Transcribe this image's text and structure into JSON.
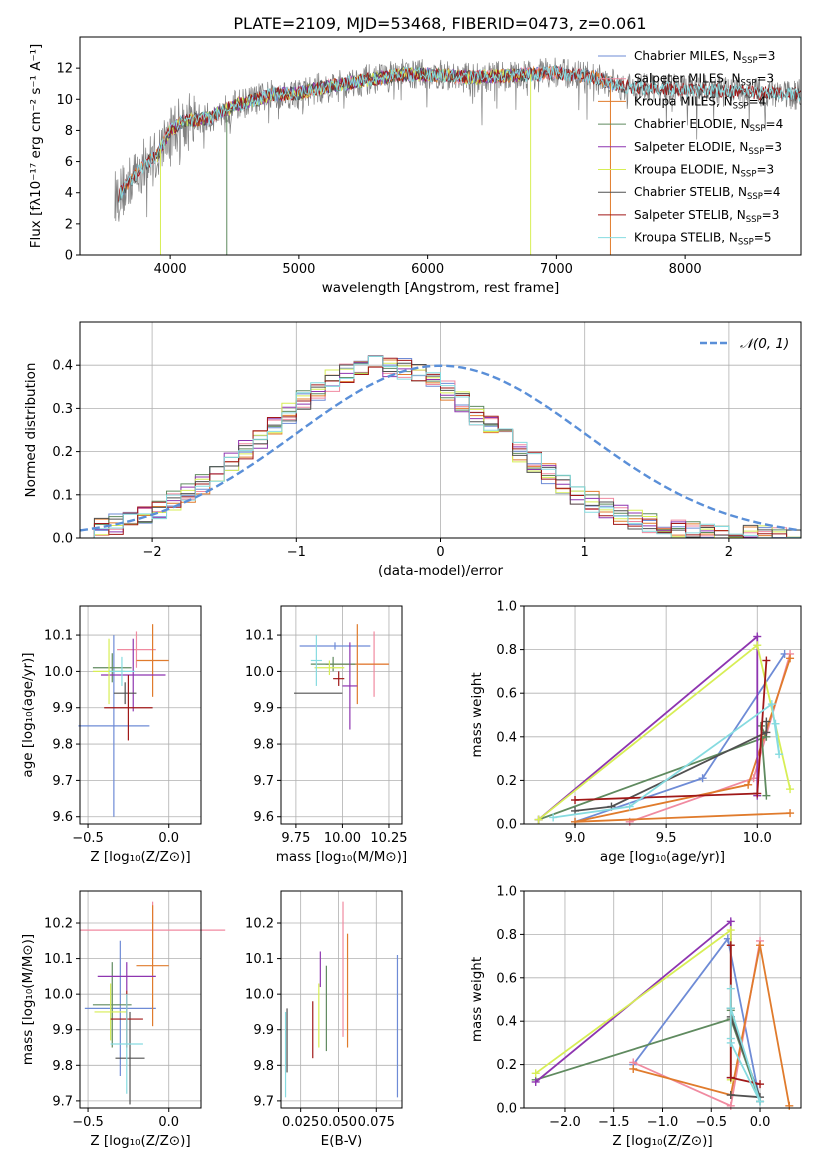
{
  "figure": {
    "title": "PLATE=2109, MJD=53468, FIBERID=0473, z=0.061"
  },
  "colors": {
    "chabrier_miles": "#6e8bd6",
    "salpeter_miles": "#f08aa0",
    "kroupa_miles": "#e07b2c",
    "chabrier_elodie": "#5f8a5f",
    "salpeter_elodie": "#8e35b0",
    "kroupa_elodie": "#d7ee55",
    "chabrier_stelib": "#505050",
    "salpeter_stelib": "#a01818",
    "kroupa_stelib": "#86dbe0",
    "data_spectrum": "#808080",
    "gaussian": "#5a8fd8"
  },
  "chart_data": [
    {
      "type": "line",
      "panel": "spectrum",
      "title": "PLATE=2109, MJD=53468, FIBERID=0473, z=0.061",
      "xlabel": "wavelength [Angstrom, rest frame]",
      "ylabel": "Flux [fλ10⁻¹⁷ erg cm⁻² s⁻¹ A⁻¹]",
      "xlim": [
        3300,
        8900
      ],
      "ylim": [
        0,
        14
      ],
      "xticks": [
        4000,
        5000,
        6000,
        7000,
        8000
      ],
      "yticks": [
        0,
        2,
        4,
        6,
        8,
        10,
        12
      ],
      "legend_position": "right",
      "continuum": {
        "x": [
          3600,
          3700,
          3800,
          3900,
          4000,
          4100,
          4300,
          4500,
          4800,
          5000,
          5200,
          5500,
          5800,
          6000,
          6300,
          6600,
          7000,
          7300,
          7500
        ],
        "y": [
          3.8,
          4.8,
          5.8,
          6.4,
          8.0,
          8.6,
          8.8,
          9.6,
          10.3,
          10.4,
          10.8,
          11.2,
          11.6,
          11.6,
          11.4,
          11.5,
          11.7,
          11.4,
          10.8
        ]
      },
      "data_range": [
        3570,
        8900
      ],
      "series": [
        {
          "name": "Chabrier MILES, N_SSP=3",
          "range": [
            3600,
            7450
          ]
        },
        {
          "name": "Salpeter MILES, N_SSP=3",
          "range": [
            3600,
            7450
          ]
        },
        {
          "name": "Kroupa MILES, N_SSP=4",
          "range": [
            3600,
            7450
          ]
        },
        {
          "name": "Chabrier ELODIE, N_SSP=4",
          "range": [
            3900,
            6800
          ]
        },
        {
          "name": "Salpeter ELODIE, N_SSP=3",
          "range": [
            3900,
            6800
          ]
        },
        {
          "name": "Kroupa ELODIE, N_SSP=3",
          "range": [
            3900,
            6800
          ]
        },
        {
          "name": "Chabrier STELIB, N_SSP=4",
          "range": [
            3600,
            8900
          ]
        },
        {
          "name": "Salpeter STELIB, N_SSP=3",
          "range": [
            3600,
            8900
          ]
        },
        {
          "name": "Kroupa STELIB, N_SSP=5",
          "range": [
            3600,
            8900
          ]
        }
      ]
    },
    {
      "type": "histogram",
      "panel": "residuals",
      "xlabel": "(data-model)/error",
      "ylabel": "Normed distribution",
      "xlim": [
        -2.5,
        2.5
      ],
      "ylim": [
        0,
        0.5
      ],
      "xticks": [
        -2,
        -1,
        0,
        1,
        2
      ],
      "yticks": [
        0.0,
        0.1,
        0.2,
        0.3,
        0.4
      ],
      "grid": true,
      "legend_position": "top-right",
      "legend": "𝒩(0, 1)",
      "bin_width": 0.1,
      "bins_start": -2.5,
      "envelope": [
        0.018,
        0.024,
        0.032,
        0.043,
        0.055,
        0.068,
        0.085,
        0.104,
        0.126,
        0.15,
        0.176,
        0.204,
        0.232,
        0.261,
        0.29,
        0.317,
        0.342,
        0.364,
        0.381,
        0.393,
        0.399,
        0.398,
        0.392,
        0.38,
        0.362,
        0.34,
        0.314,
        0.286,
        0.257,
        0.229,
        0.201,
        0.174,
        0.148,
        0.124,
        0.103,
        0.084,
        0.067,
        0.054,
        0.043,
        0.034,
        0.027,
        0.021,
        0.017,
        0.014,
        0.012,
        0.01,
        0.009,
        0.008,
        0.007,
        0.007
      ]
    },
    {
      "type": "errorbar",
      "panel": "age-vs-Z",
      "xlabel": "Z [log₁₀(Z/Z⊙)]",
      "ylabel": "age  [log₁₀(age/yr)]",
      "xlim": [
        -0.55,
        0.2
      ],
      "ylim": [
        9.58,
        10.18
      ],
      "xticks": [
        -0.5,
        0.0
      ],
      "yticks": [
        9.6,
        9.7,
        9.8,
        9.9,
        10.0,
        10.1
      ],
      "grid": true,
      "points": [
        {
          "series": "Chabrier MILES, N_SSP=3",
          "x": -0.34,
          "xerr": 0.22,
          "y": 9.85,
          "yerr": 0.25
        },
        {
          "series": "Salpeter MILES, N_SSP=3",
          "x": -0.2,
          "xerr": 0.12,
          "y": 10.06,
          "yerr": 0.05
        },
        {
          "series": "Kroupa MILES, N_SSP=4",
          "x": -0.1,
          "xerr": 0.1,
          "y": 10.03,
          "yerr": 0.1
        },
        {
          "series": "Chabrier ELODIE, N_SSP=4",
          "x": -0.35,
          "xerr": 0.12,
          "y": 10.01,
          "yerr": 0.04
        },
        {
          "series": "Salpeter ELODIE, N_SSP=3",
          "x": -0.22,
          "xerr": 0.2,
          "y": 9.99,
          "yerr": 0.1
        },
        {
          "series": "Kroupa ELODIE, N_SSP=3",
          "x": -0.37,
          "xerr": 0.1,
          "y": 10.0,
          "yerr": 0.09
        },
        {
          "series": "Chabrier STELIB, N_SSP=4",
          "x": -0.27,
          "xerr": 0.07,
          "y": 9.94,
          "yerr": 0.03
        },
        {
          "series": "Salpeter STELIB, N_SSP=3",
          "x": -0.25,
          "xerr": 0.15,
          "y": 9.9,
          "yerr": 0.09
        },
        {
          "series": "Kroupa STELIB, N_SSP=5",
          "x": -0.29,
          "xerr": 0.08,
          "y": 10.0,
          "yerr": 0.04
        }
      ]
    },
    {
      "type": "errorbar",
      "panel": "age-vs-mass",
      "xlabel": "mass [log₁₀(M/M⊙)]",
      "xlim": [
        9.67,
        10.32
      ],
      "ylim": [
        9.58,
        10.18
      ],
      "xticks": [
        9.75,
        10.0,
        10.25
      ],
      "yticks": [
        9.6,
        9.7,
        9.8,
        9.9,
        10.0,
        10.1
      ],
      "grid": true,
      "points": [
        {
          "series": "Chabrier MILES, N_SSP=3",
          "x": 9.96,
          "xerr": 0.19,
          "y": 10.07,
          "yerr": 0.01
        },
        {
          "series": "Salpeter MILES, N_SSP=3",
          "x": 10.17,
          "xerr": 0.08,
          "y": 10.02,
          "yerr": 0.09
        },
        {
          "series": "Kroupa MILES, N_SSP=4",
          "x": 10.08,
          "xerr": 0.17,
          "y": 10.02,
          "yerr": 0.11
        },
        {
          "series": "Chabrier ELODIE, N_SSP=4",
          "x": 9.95,
          "xerr": 0.12,
          "y": 10.02,
          "yerr": 0.02
        },
        {
          "series": "Salpeter ELODIE, N_SSP=3",
          "x": 10.04,
          "xerr": 0.04,
          "y": 9.96,
          "yerr": 0.12
        },
        {
          "series": "Kroupa ELODIE, N_SSP=3",
          "x": 9.93,
          "xerr": 0.08,
          "y": 10.01,
          "yerr": 0.02
        },
        {
          "series": "Chabrier STELIB, N_SSP=4",
          "x": 9.87,
          "xerr": 0.13,
          "y": 9.94,
          "yerr": 0.0
        },
        {
          "series": "Salpeter STELIB, N_SSP=3",
          "x": 9.98,
          "xerr": 0.03,
          "y": 9.98,
          "yerr": 0.02
        },
        {
          "series": "Kroupa STELIB, N_SSP=5",
          "x": 9.86,
          "xerr": 0.03,
          "y": 10.03,
          "yerr": 0.07
        }
      ]
    },
    {
      "type": "line",
      "panel": "mass-weight-vs-age",
      "xlabel": "age  [log₁₀(age/yr)]",
      "ylabel": "mass weight",
      "xlim": [
        8.72,
        10.24
      ],
      "ylim": [
        0,
        1.0
      ],
      "xticks": [
        9.0,
        9.5,
        10.0
      ],
      "yticks": [
        0.0,
        0.2,
        0.4,
        0.6,
        0.8,
        1.0
      ],
      "grid": true,
      "series": [
        {
          "name": "Chabrier MILES, N_SSP=3",
          "x": [
            10.15,
            9.7,
            9.0
          ],
          "y": [
            0.78,
            0.21,
            0.01
          ]
        },
        {
          "name": "Salpeter MILES, N_SSP=3",
          "x": [
            10.18,
            9.98,
            9.3
          ],
          "y": [
            0.78,
            0.21,
            0.01
          ]
        },
        {
          "name": "Kroupa MILES, N_SSP=4",
          "x": [
            10.18,
            9.95,
            9.0,
            10.18
          ],
          "y": [
            0.76,
            0.18,
            0.01,
            0.05
          ]
        },
        {
          "name": "Chabrier ELODIE, N_SSP=4",
          "x": [
            8.8,
            10.05,
            10.02,
            10.05
          ],
          "y": [
            0.02,
            0.4,
            0.45,
            0.13
          ]
        },
        {
          "name": "Salpeter ELODIE, N_SSP=3",
          "x": [
            8.8,
            10.0,
            10.0
          ],
          "y": [
            0.02,
            0.86,
            0.13
          ]
        },
        {
          "name": "Kroupa ELODIE, N_SSP=3",
          "x": [
            8.8,
            10.0,
            10.18
          ],
          "y": [
            0.02,
            0.82,
            0.16
          ]
        },
        {
          "name": "Chabrier STELIB, N_SSP=4",
          "x": [
            9.0,
            9.2,
            10.05,
            10.05
          ],
          "y": [
            0.06,
            0.08,
            0.42,
            0.47
          ]
        },
        {
          "name": "Salpeter STELIB, N_SSP=3",
          "x": [
            9.0,
            10.0,
            10.05
          ],
          "y": [
            0.11,
            0.14,
            0.75
          ]
        },
        {
          "name": "Kroupa STELIB, N_SSP=5",
          "x": [
            8.88,
            9.3,
            10.08,
            10.12,
            10.1
          ],
          "y": [
            0.03,
            0.08,
            0.55,
            0.32,
            0.46
          ]
        }
      ]
    },
    {
      "type": "errorbar",
      "panel": "mass-vs-Z",
      "xlabel": "Z [log₁₀(Z/Z⊙)]",
      "ylabel": "mass [log₁₀(M/M⊙)]",
      "xlim": [
        -0.55,
        0.2
      ],
      "ylim": [
        9.68,
        10.29
      ],
      "xticks": [
        -0.5,
        0.0
      ],
      "yticks": [
        9.7,
        9.8,
        9.9,
        10.0,
        10.1,
        10.2
      ],
      "grid": true,
      "points": [
        {
          "series": "Chabrier MILES, N_SSP=3",
          "x": -0.3,
          "xerr": 0.22,
          "y": 9.96,
          "yerr": 0.19
        },
        {
          "series": "Salpeter MILES, N_SSP=3",
          "x": -0.1,
          "xerr": 0.45,
          "y": 10.18,
          "yerr": 0.08
        },
        {
          "series": "Kroupa MILES, N_SSP=4",
          "x": -0.1,
          "xerr": 0.1,
          "y": 10.08,
          "yerr": 0.17
        },
        {
          "series": "Chabrier ELODIE, N_SSP=4",
          "x": -0.35,
          "xerr": 0.12,
          "y": 9.97,
          "yerr": 0.12
        },
        {
          "series": "Salpeter ELODIE, N_SSP=3",
          "x": -0.26,
          "xerr": 0.18,
          "y": 10.05,
          "yerr": 0.04
        },
        {
          "series": "Kroupa ELODIE, N_SSP=3",
          "x": -0.36,
          "xerr": 0.1,
          "y": 9.95,
          "yerr": 0.08
        },
        {
          "series": "Chabrier STELIB, N_SSP=4",
          "x": -0.24,
          "xerr": 0.09,
          "y": 9.82,
          "yerr": 0.13
        },
        {
          "series": "Salpeter STELIB, N_SSP=3",
          "x": -0.26,
          "xerr": 0.1,
          "y": 9.93,
          "yerr": 0.08
        },
        {
          "series": "Kroupa STELIB, N_SSP=5",
          "x": -0.26,
          "xerr": 0.1,
          "y": 9.86,
          "yerr": 0.14
        }
      ]
    },
    {
      "type": "errorbar",
      "panel": "mass-vs-ebv",
      "xlabel": "E(B-V)",
      "xlim": [
        0.012,
        0.092
      ],
      "ylim": [
        9.68,
        10.29
      ],
      "xticks": [
        0.025,
        0.05,
        0.075
      ],
      "xticklabels": [
        "0.025",
        "0.050",
        "0.075"
      ],
      "yticks": [
        9.7,
        9.8,
        9.9,
        10.0,
        10.1,
        10.2
      ],
      "grid": true,
      "points": [
        {
          "series": "Chabrier MILES, N_SSP=3",
          "x": 0.089,
          "y": 9.91,
          "yerr": 0.2
        },
        {
          "series": "Salpeter MILES, N_SSP=3",
          "x": 0.053,
          "y": 10.07,
          "yerr": 0.19
        },
        {
          "series": "Kroupa MILES, N_SSP=4",
          "x": 0.056,
          "y": 10.01,
          "yerr": 0.16
        },
        {
          "series": "Chabrier ELODIE, N_SSP=4",
          "x": 0.042,
          "y": 9.96,
          "yerr": 0.12
        },
        {
          "series": "Salpeter ELODIE, N_SSP=3",
          "x": 0.038,
          "y": 10.07,
          "yerr": 0.05
        },
        {
          "series": "Kroupa ELODIE, N_SSP=3",
          "x": 0.037,
          "y": 9.94,
          "yerr": 0.09
        },
        {
          "series": "Chabrier STELIB, N_SSP=4",
          "x": 0.016,
          "y": 9.87,
          "yerr": 0.09
        },
        {
          "series": "Salpeter STELIB, N_SSP=3",
          "x": 0.033,
          "y": 9.9,
          "yerr": 0.08
        },
        {
          "series": "Kroupa STELIB, N_SSP=5",
          "x": 0.015,
          "y": 9.83,
          "yerr": 0.12
        }
      ]
    },
    {
      "type": "line",
      "panel": "mass-weight-vs-Z",
      "xlabel": "Z [log₁₀(Z/Z⊙)]",
      "ylabel": "mass weight",
      "xlim": [
        -2.42,
        0.42
      ],
      "ylim": [
        0,
        1.0
      ],
      "xticks": [
        -2.0,
        -1.5,
        -1.0,
        -0.5,
        0.0
      ],
      "yticks": [
        0.0,
        0.2,
        0.4,
        0.6,
        0.8,
        1.0
      ],
      "grid": true,
      "series": [
        {
          "name": "Chabrier MILES, N_SSP=3",
          "x": [
            -1.3,
            -0.33,
            0.0
          ],
          "y": [
            0.2,
            0.78,
            0.03
          ]
        },
        {
          "name": "Salpeter MILES, N_SSP=3",
          "x": [
            -1.3,
            -0.3,
            0.0
          ],
          "y": [
            0.21,
            0.01,
            0.77
          ]
        },
        {
          "name": "Kroupa MILES, N_SSP=4",
          "x": [
            -1.3,
            -0.3,
            0.0,
            0.3
          ],
          "y": [
            0.18,
            0.06,
            0.75,
            0.01
          ]
        },
        {
          "name": "Chabrier ELODIE, N_SSP=4",
          "x": [
            -2.3,
            -0.3,
            0.0,
            -0.3
          ],
          "y": [
            0.13,
            0.41,
            0.03,
            0.45
          ]
        },
        {
          "name": "Salpeter ELODIE, N_SSP=3",
          "x": [
            -2.3,
            -0.3,
            -0.3
          ],
          "y": [
            0.12,
            0.86,
            0.14
          ]
        },
        {
          "name": "Kroupa ELODIE, N_SSP=3",
          "x": [
            -2.3,
            -0.3,
            -0.3
          ],
          "y": [
            0.16,
            0.82,
            0.13
          ]
        },
        {
          "name": "Chabrier STELIB, N_SSP=4",
          "x": [
            -0.3,
            -0.3,
            0.0,
            -0.3
          ],
          "y": [
            0.46,
            0.42,
            0.05,
            0.06
          ]
        },
        {
          "name": "Salpeter STELIB, N_SSP=3",
          "x": [
            -0.3,
            -0.3,
            0.0
          ],
          "y": [
            0.75,
            0.14,
            0.11
          ]
        },
        {
          "name": "Kroupa STELIB, N_SSP=5",
          "x": [
            -0.3,
            -0.3,
            -0.3,
            0.0,
            -0.3
          ],
          "y": [
            0.32,
            0.55,
            0.46,
            0.03,
            0.3
          ]
        }
      ]
    }
  ]
}
